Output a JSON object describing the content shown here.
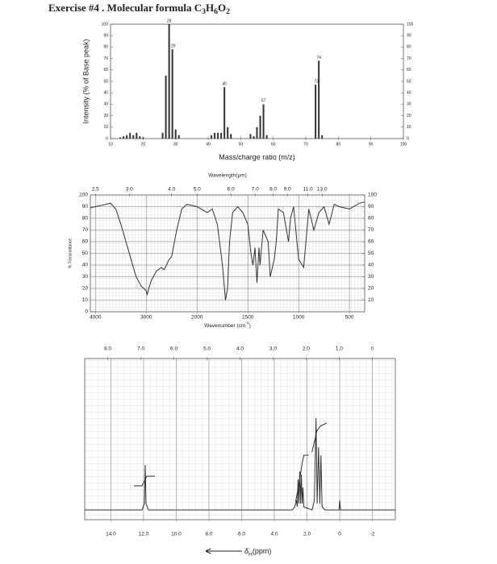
{
  "title": [
    {
      "text": "Exercise #4 . Molecular formula C"
    },
    {
      "text": "3",
      "shift": "sub"
    },
    {
      "text": "H"
    },
    {
      "text": "6",
      "shift": "sub"
    },
    {
      "text": "O"
    },
    {
      "text": "2",
      "shift": "sub"
    }
  ],
  "chart_data": [
    {
      "type": "bar",
      "ylabel": "Intensity (% of Base peak)",
      "xlabel": [
        {
          "text": "Mass/charge ratio (m/z)"
        }
      ],
      "xlim": [
        10,
        100
      ],
      "xticks": [
        10,
        20,
        30,
        40,
        50,
        60,
        70,
        80,
        90,
        100
      ],
      "ylim": [
        0,
        100
      ],
      "yticks": [
        0,
        10,
        20,
        30,
        40,
        50,
        60,
        70,
        80,
        90,
        100
      ],
      "y2lim": [
        0,
        100
      ],
      "y2ticks": [
        0,
        10,
        20,
        30,
        40,
        50,
        60,
        70,
        80,
        90,
        100
      ],
      "color": "#333333",
      "x": [
        13,
        14,
        15,
        16,
        17,
        18,
        19,
        20,
        26,
        27,
        28,
        29,
        30,
        31,
        41,
        42,
        43,
        44,
        45,
        46,
        47,
        53,
        54,
        55,
        56,
        57,
        58,
        73,
        74,
        75
      ],
      "values": [
        1,
        2,
        3,
        5,
        3,
        5,
        2,
        1,
        5,
        55,
        100,
        78,
        8,
        3,
        3,
        5,
        5,
        5,
        45,
        10,
        4,
        4,
        2,
        10,
        20,
        30,
        3,
        47,
        68,
        3
      ],
      "annotations": [
        28,
        29,
        45,
        57,
        73,
        74
      ]
    },
    {
      "type": "line",
      "xscale": "tick-spaced",
      "grid": true,
      "color": "#333333",
      "ylabel": "% Transmittance",
      "x2label": "Wavelength(μm)",
      "xlabel": [
        {
          "text": "Wavenumber (cm"
        },
        {
          "text": "-1",
          "shift": "sup"
        },
        {
          "text": ")"
        }
      ],
      "xlim": [
        4100,
        350
      ],
      "xticks": [
        4000,
        3000,
        2000,
        1500,
        1000,
        500
      ],
      "x2ticks": [
        2.5,
        {
          "value": 3,
          "label": "3.0"
        },
        {
          "value": 4,
          "label": "4.0"
        },
        {
          "value": 5,
          "label": "5.0"
        },
        {
          "value": 6,
          "label": "6.0"
        },
        {
          "value": 7,
          "label": "7.0"
        },
        {
          "value": 8,
          "label": "8.0"
        },
        {
          "value": 9,
          "label": "9.0"
        },
        {
          "value": 11,
          "label": "11.0"
        },
        {
          "value": 13,
          "label": "13.0"
        }
      ],
      "ylim": [
        0,
        100
      ],
      "yticks": [
        0,
        10,
        20,
        30,
        40,
        50,
        60,
        70,
        80,
        90,
        100
      ],
      "y2lim": [
        0,
        100
      ],
      "y2ticks": [
        10,
        20,
        30,
        40,
        50,
        60,
        70,
        80,
        90,
        100
      ],
      "series": [
        {
          "x": [
            4100,
            4000,
            3800,
            3700,
            3600,
            3500,
            3400,
            3300,
            3200,
            3100,
            3000,
            2980,
            2950,
            2900,
            2800,
            2700,
            2650,
            2600,
            2550,
            2500,
            2400,
            2300,
            2200,
            2100,
            2000,
            1900,
            1850,
            1800,
            1750,
            1720,
            1700,
            1680,
            1650,
            1600,
            1550,
            1500,
            1470,
            1450,
            1430,
            1410,
            1390,
            1380,
            1350,
            1300,
            1280,
            1240,
            1220,
            1200,
            1150,
            1100,
            1080,
            1050,
            1000,
            950,
            900,
            850,
            800,
            750,
            700,
            650,
            600,
            500,
            400,
            350
          ],
          "values": [
            89,
            90,
            92,
            93,
            88,
            75,
            60,
            45,
            30,
            22,
            18,
            15,
            20,
            27,
            35,
            38,
            36,
            40,
            45,
            47,
            70,
            88,
            92,
            91,
            90,
            85,
            88,
            75,
            40,
            10,
            20,
            60,
            85,
            90,
            85,
            75,
            50,
            40,
            55,
            25,
            55,
            40,
            70,
            60,
            30,
            45,
            60,
            88,
            85,
            60,
            80,
            90,
            45,
            38,
            88,
            70,
            85,
            90,
            75,
            92,
            90,
            88,
            93,
            94
          ]
        }
      ]
    },
    {
      "type": "line",
      "grid": true,
      "color": "#333333",
      "xlabel": [
        {
          "text": "δ",
          "style": "italic"
        },
        {
          "text": "H",
          "shift": "sub"
        },
        {
          "text": "(ppm)"
        }
      ],
      "xlim": [
        15.6,
        -3.4
      ],
      "xticks": [
        {
          "value": 14,
          "label": "14.0"
        },
        {
          "value": 12,
          "label": "12.0"
        },
        {
          "value": 10,
          "label": "10.0"
        },
        {
          "value": 8,
          "label": "8.0"
        },
        {
          "value": 6,
          "label": "6.0"
        },
        {
          "value": 4,
          "label": "4.0"
        },
        {
          "value": 2,
          "label": "2.0"
        },
        0,
        -2
      ],
      "x2lim": [
        8.7,
        -0.7
      ],
      "x2ticks": [
        {
          "value": 8,
          "label": "8.0"
        },
        {
          "value": 7,
          "label": "7.0"
        },
        {
          "value": 6,
          "label": "6.0"
        },
        {
          "value": 5,
          "label": "5.0"
        },
        {
          "value": 4,
          "label": "4.0"
        },
        {
          "value": 3,
          "label": "3.0"
        },
        {
          "value": 2,
          "label": "2.0"
        },
        {
          "value": 1,
          "label": "1.0"
        },
        0
      ],
      "ylim": [
        0,
        100
      ],
      "series": [
        {
          "name": "spectrum",
          "x": [
            15.6,
            12.1,
            11.95,
            11.9,
            11.85,
            11.7,
            2.9,
            2.75,
            2.65,
            2.6,
            2.55,
            2.5,
            2.45,
            2.4,
            2.35,
            2.3,
            2.25,
            2.2,
            1.7,
            1.55,
            1.45,
            1.38,
            1.3,
            1.22,
            1.15,
            1.08,
            0.9,
            0.05,
            0,
            -0.05,
            -3.4
          ],
          "values": [
            6,
            6,
            10,
            34,
            10,
            6,
            6,
            8,
            12,
            8,
            25,
            10,
            30,
            10,
            28,
            10,
            20,
            8,
            6,
            12,
            63,
            10,
            45,
            10,
            40,
            8,
            6,
            6,
            12,
            6,
            6
          ]
        },
        {
          "name": "integral",
          "x": [
            12.6,
            12.1,
            11.95,
            11.8,
            11.3,
            3.6,
            2.7,
            2.5,
            2.3,
            2.2,
            1.9,
            2.5,
            1.7,
            1.4,
            1.2,
            0.8
          ],
          "values": [
            21,
            21,
            24,
            27,
            27,
            null,
            11,
            22,
            35,
            40,
            40,
            null,
            42,
            55,
            58,
            60
          ]
        }
      ]
    }
  ]
}
